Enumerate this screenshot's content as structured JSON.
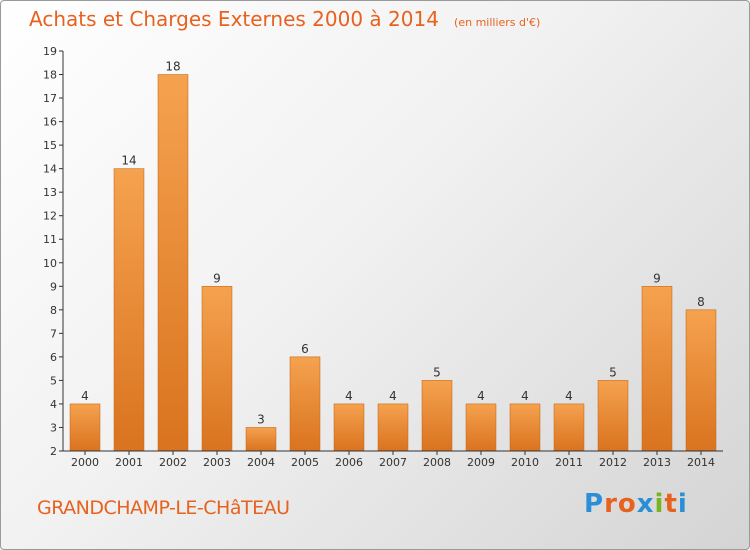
{
  "header": {
    "title": "Achats et Charges Externes 2000 à 2014",
    "subtitle": "(en milliers d'€)"
  },
  "footer": {
    "town": "GRANDCHAMP-LE-CHâTEAU",
    "brand_letters": [
      "P",
      "r",
      "o",
      "x",
      "i",
      "t",
      "i"
    ],
    "brand_colors": [
      "#2a8fd6",
      "#e8621f",
      "#e8621f",
      "#2a8fd6",
      "#7ab51d",
      "#e8621f",
      "#2a8fd6"
    ]
  },
  "chart_data": {
    "type": "bar",
    "title": "Achats et Charges Externes 2000 à 2014",
    "subtitle": "(en milliers d'€)",
    "categories": [
      "2000",
      "2001",
      "2002",
      "2003",
      "2004",
      "2005",
      "2006",
      "2007",
      "2008",
      "2009",
      "2010",
      "2011",
      "2012",
      "2013",
      "2014"
    ],
    "values": [
      4,
      14,
      18,
      9,
      3,
      6,
      4,
      4,
      5,
      4,
      4,
      4,
      5,
      9,
      8
    ],
    "yticks": [
      2,
      3,
      4,
      5,
      6,
      7,
      8,
      9,
      10,
      11,
      12,
      13,
      14,
      15,
      16,
      17,
      18,
      19
    ],
    "ylim": [
      2,
      19
    ],
    "grid": false,
    "bar_color_top": "#f5a24f",
    "bar_color_bottom": "#d9731f",
    "axis_color": "#333333"
  }
}
